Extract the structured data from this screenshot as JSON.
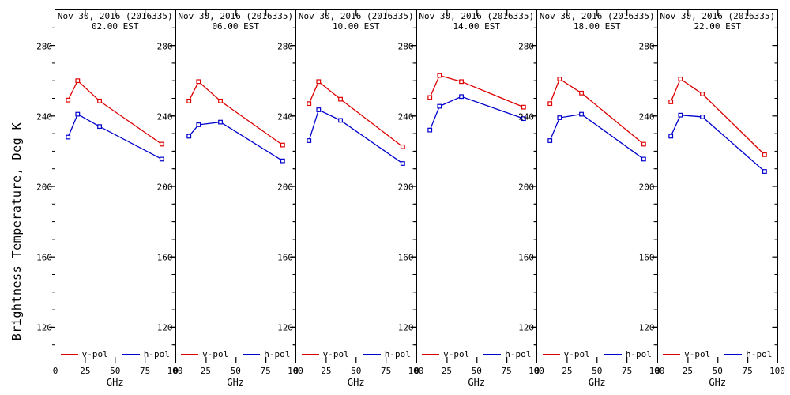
{
  "figure": {
    "ylabel": "Brightness Temperature, Deg K",
    "background": "#ffffff",
    "axis_color": "#000000"
  },
  "chart_data": [
    {
      "type": "line",
      "title": "Nov 30, 2016 (2016335)",
      "subtitle": "02.00 EST",
      "xlabel": "GHz",
      "ylabel": "Brightness Temperature, Deg K",
      "x": [
        10.7,
        18.7,
        37,
        89
      ],
      "xlim": [
        0,
        100
      ],
      "ylim": [
        100,
        300
      ],
      "xticks": [
        0,
        25,
        50,
        75,
        100
      ],
      "yticks": [
        120,
        160,
        200,
        240,
        280
      ],
      "ytick_minor_step": 10,
      "grid": false,
      "marker": "open-square",
      "legend_position": "bottom-inside",
      "series": [
        {
          "name": "v-pol",
          "color": "#dd0000",
          "values": [
            249,
            260,
            248.5,
            224
          ]
        },
        {
          "name": "h-pol",
          "color": "#0000cc",
          "values": [
            228,
            241,
            234,
            215.5
          ]
        }
      ]
    },
    {
      "type": "line",
      "title": "Nov 30, 2016 (2016335)",
      "subtitle": "06.00 EST",
      "xlabel": "GHz",
      "ylabel": "Brightness Temperature, Deg K",
      "x": [
        10.7,
        18.7,
        37,
        89
      ],
      "xlim": [
        0,
        100
      ],
      "ylim": [
        100,
        300
      ],
      "xticks": [
        0,
        25,
        50,
        75,
        100
      ],
      "yticks": [
        120,
        160,
        200,
        240,
        280
      ],
      "ytick_minor_step": 10,
      "grid": false,
      "marker": "open-square",
      "legend_position": "bottom-inside",
      "series": [
        {
          "name": "v-pol",
          "color": "#dd0000",
          "values": [
            248.5,
            259.5,
            248.5,
            223.5
          ]
        },
        {
          "name": "h-pol",
          "color": "#0000cc",
          "values": [
            228.5,
            235,
            236.5,
            214.5
          ]
        }
      ]
    },
    {
      "type": "line",
      "title": "Nov 30, 2016 (2016335)",
      "subtitle": "10.00 EST",
      "xlabel": "GHz",
      "ylabel": "Brightness Temperature, Deg K",
      "x": [
        10.7,
        18.7,
        37,
        89
      ],
      "xlim": [
        0,
        100
      ],
      "ylim": [
        100,
        300
      ],
      "xticks": [
        0,
        25,
        50,
        75,
        100
      ],
      "yticks": [
        120,
        160,
        200,
        240,
        280
      ],
      "ytick_minor_step": 10,
      "grid": false,
      "marker": "open-square",
      "legend_position": "bottom-inside",
      "series": [
        {
          "name": "v-pol",
          "color": "#dd0000",
          "values": [
            247,
            259.5,
            249.5,
            222.5
          ]
        },
        {
          "name": "h-pol",
          "color": "#0000cc",
          "values": [
            226,
            243.5,
            237.5,
            213
          ]
        }
      ]
    },
    {
      "type": "line",
      "title": "Nov 30, 2016 (2016335)",
      "subtitle": "14.00 EST",
      "xlabel": "GHz",
      "ylabel": "Brightness Temperature, Deg K",
      "x": [
        10.7,
        18.7,
        37,
        89
      ],
      "xlim": [
        0,
        100
      ],
      "ylim": [
        100,
        300
      ],
      "xticks": [
        0,
        25,
        50,
        75,
        100
      ],
      "yticks": [
        120,
        160,
        200,
        240,
        280
      ],
      "ytick_minor_step": 10,
      "grid": false,
      "marker": "open-square",
      "legend_position": "bottom-inside",
      "series": [
        {
          "name": "v-pol",
          "color": "#dd0000",
          "values": [
            250.5,
            263,
            259.5,
            245
          ]
        },
        {
          "name": "h-pol",
          "color": "#0000cc",
          "values": [
            232,
            245.5,
            251,
            238.5
          ]
        }
      ]
    },
    {
      "type": "line",
      "title": "Nov 30, 2016 (2016335)",
      "subtitle": "18.00 EST",
      "xlabel": "GHz",
      "ylabel": "Brightness Temperature, Deg K",
      "x": [
        10.7,
        18.7,
        37,
        89
      ],
      "xlim": [
        0,
        100
      ],
      "ylim": [
        100,
        300
      ],
      "xticks": [
        0,
        25,
        50,
        75,
        100
      ],
      "yticks": [
        120,
        160,
        200,
        240,
        280
      ],
      "ytick_minor_step": 10,
      "grid": false,
      "marker": "open-square",
      "legend_position": "bottom-inside",
      "series": [
        {
          "name": "v-pol",
          "color": "#dd0000",
          "values": [
            247,
            261,
            253,
            224
          ]
        },
        {
          "name": "h-pol",
          "color": "#0000cc",
          "values": [
            226,
            239,
            241,
            215.5
          ]
        }
      ]
    },
    {
      "type": "line",
      "title": "Nov 30, 2016 (2016335)",
      "subtitle": "22.00 EST",
      "xlabel": "GHz",
      "ylabel": "Brightness Temperature, Deg K",
      "x": [
        10.7,
        18.7,
        37,
        89
      ],
      "xlim": [
        0,
        100
      ],
      "ylim": [
        100,
        300
      ],
      "xticks": [
        0,
        25,
        50,
        75,
        100
      ],
      "yticks": [
        120,
        160,
        200,
        240,
        280
      ],
      "ytick_minor_step": 10,
      "grid": false,
      "marker": "open-square",
      "legend_position": "bottom-inside",
      "series": [
        {
          "name": "v-pol",
          "color": "#dd0000",
          "values": [
            248,
            261,
            252.5,
            218
          ]
        },
        {
          "name": "h-pol",
          "color": "#0000cc",
          "values": [
            228.5,
            240.5,
            239.5,
            208.5
          ]
        }
      ]
    }
  ]
}
